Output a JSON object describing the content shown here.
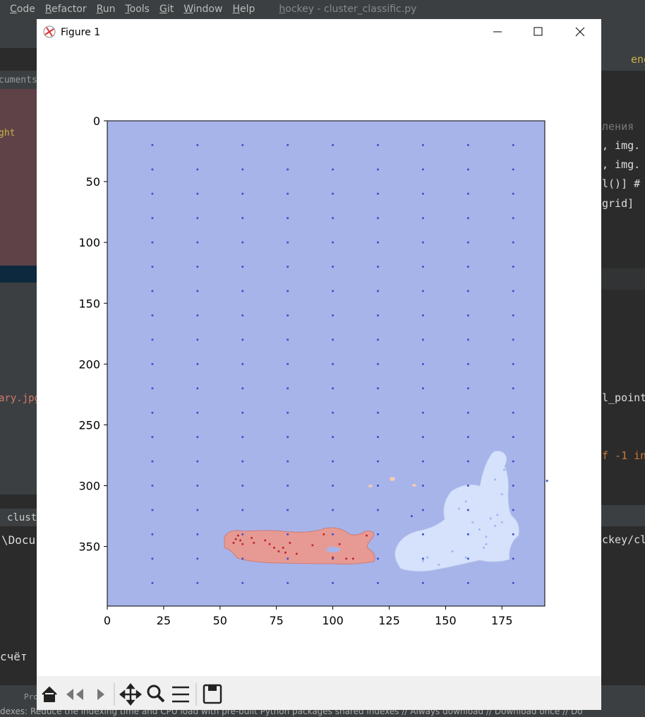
{
  "ide": {
    "menu": [
      "Code",
      "Refactor",
      "Run",
      "Tools",
      "Git",
      "Window",
      "Help"
    ],
    "title": "hockey - cluster_classific.py",
    "left": [
      "cuments",
      "ght",
      "ary.jpg",
      "cluster",
      "\\Docu",
      "счёт",
      "Pro"
    ],
    "right": [
      "eng",
      "ления",
      ", img.",
      ", img.",
      "l()] #",
      " grid]",
      "l_point",
      "f -1 in",
      "ckey/cl"
    ],
    "status": "dexes: Reduce the indexing time and CPU load with pre-built Python packages shared indexes // Always download // Download once // Do"
  },
  "window": {
    "title": "Figure 1"
  },
  "chart_data": {
    "type": "scatter",
    "xlim": [
      0,
      194
    ],
    "ylim": [
      399,
      0
    ],
    "xticks": [
      0,
      25,
      50,
      75,
      100,
      125,
      150,
      175
    ],
    "yticks": [
      0,
      50,
      100,
      150,
      200,
      250,
      300,
      350
    ],
    "background": "#a7b4e9",
    "series": [
      {
        "color": "#3f4fcf",
        "x": [
          20,
          40,
          60,
          80,
          100,
          120,
          140,
          160,
          180,
          20,
          40,
          60,
          80,
          100,
          120,
          140,
          160,
          180,
          20,
          40,
          60,
          80,
          100,
          120,
          140,
          160,
          180,
          20,
          40,
          60,
          80,
          100,
          120,
          140,
          160,
          180,
          20,
          40,
          60,
          80,
          100,
          120,
          140,
          160,
          180,
          20,
          40,
          60,
          80,
          100,
          120,
          140,
          160,
          180,
          20,
          40,
          60,
          80,
          100,
          120,
          140,
          160,
          180,
          20,
          40,
          60,
          80,
          100,
          120,
          140,
          160,
          180,
          20,
          40,
          60,
          80,
          100,
          120,
          140,
          160,
          180,
          20,
          40,
          60,
          80,
          100,
          120,
          140,
          160,
          180,
          20,
          40,
          60,
          80,
          100,
          120,
          140,
          160,
          180,
          20,
          40,
          60,
          80,
          100,
          120,
          140,
          160,
          180,
          20,
          40,
          60,
          80,
          100,
          120,
          140,
          160,
          180,
          20,
          40,
          60,
          80,
          100,
          120,
          140,
          160,
          180,
          20,
          40,
          60,
          80,
          100,
          120,
          140,
          160,
          180,
          20,
          40,
          60,
          80,
          100,
          120,
          140,
          160,
          180,
          20,
          40,
          60,
          80,
          100,
          120,
          140,
          160,
          180,
          20,
          40,
          60,
          80,
          100,
          120,
          140,
          160,
          180,
          20,
          40,
          60,
          80,
          100,
          120,
          140,
          160,
          180,
          195,
          135
        ],
        "values": [
          20,
          20,
          20,
          20,
          20,
          20,
          20,
          20,
          20,
          40,
          40,
          40,
          40,
          40,
          40,
          40,
          40,
          40,
          60,
          60,
          60,
          60,
          60,
          60,
          60,
          60,
          60,
          80,
          80,
          80,
          80,
          80,
          80,
          80,
          80,
          80,
          100,
          100,
          100,
          100,
          100,
          100,
          100,
          100,
          100,
          120,
          120,
          120,
          120,
          120,
          120,
          120,
          120,
          120,
          140,
          140,
          140,
          140,
          140,
          140,
          140,
          140,
          140,
          160,
          160,
          160,
          160,
          160,
          160,
          160,
          160,
          160,
          180,
          180,
          180,
          180,
          180,
          180,
          180,
          180,
          180,
          200,
          200,
          200,
          200,
          200,
          200,
          200,
          200,
          200,
          220,
          220,
          220,
          220,
          220,
          220,
          220,
          220,
          220,
          240,
          240,
          240,
          240,
          240,
          240,
          240,
          240,
          240,
          260,
          260,
          260,
          260,
          260,
          260,
          260,
          260,
          260,
          280,
          280,
          280,
          280,
          280,
          280,
          280,
          280,
          280,
          300,
          300,
          300,
          300,
          300,
          300,
          300,
          300,
          300,
          320,
          320,
          320,
          320,
          320,
          320,
          320,
          320,
          320,
          340,
          340,
          340,
          340,
          340,
          340,
          340,
          340,
          340,
          360,
          360,
          360,
          360,
          360,
          360,
          360,
          360,
          360,
          380,
          380,
          380,
          380,
          380,
          380,
          380,
          380,
          380,
          296,
          325
        ]
      },
      {
        "color": "#c3262f",
        "x": [
          56,
          57,
          58,
          59,
          60,
          64,
          65,
          70,
          72,
          74,
          76,
          78,
          79,
          81,
          84,
          91,
          96,
          100,
          103,
          106,
          109,
          115
        ],
        "values": [
          347,
          344,
          341,
          345,
          348,
          343,
          347,
          345,
          348,
          351,
          354,
          351,
          355,
          347,
          356,
          349,
          340,
          359,
          348,
          360,
          360,
          341
        ]
      },
      {
        "color": "#9bb8f4",
        "x": [
          156,
          159,
          162,
          165,
          168,
          172,
          173,
          175,
          168,
          167,
          140,
          142,
          147,
          153,
          159,
          172,
          176,
          178,
          175,
          170
        ],
        "values": [
          319,
          313,
          330,
          336,
          342,
          333,
          324,
          307,
          348,
          351,
          362,
          359,
          365,
          354,
          359,
          295,
          287,
          278,
          330,
          327
        ]
      }
    ]
  }
}
